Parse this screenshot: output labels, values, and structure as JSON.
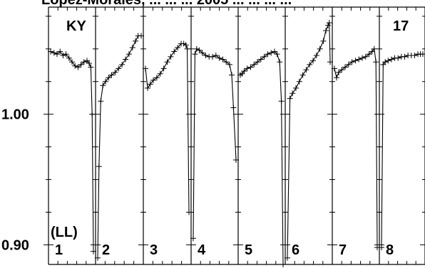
{
  "header_partial": "Lopez-Morales, ... ... ... 2005 ... ... ... ...",
  "chart_data": {
    "type": "line",
    "title": "",
    "xlabel": "",
    "ylabel": "",
    "ylim": [
      0.885,
      1.082
    ],
    "y_ticks": [
      0.9,
      1.0
    ],
    "y_tick_labels": [
      "0.90",
      "1.00"
    ],
    "star_label": "KY",
    "corner_label": "17",
    "sub_label": "(LL)",
    "panels": [
      {
        "label": "1",
        "x": [
          0.0,
          0.08,
          0.15,
          0.22,
          0.29,
          0.36,
          0.43,
          0.5,
          0.57,
          0.64,
          0.71,
          0.78,
          0.85,
          0.9,
          0.94,
          0.97,
          1.0
        ],
        "y": [
          1.048,
          1.047,
          1.046,
          1.048,
          1.045,
          1.046,
          1.043,
          1.04,
          1.037,
          1.036,
          1.038,
          1.04,
          1.041,
          1.039,
          1.036,
          1.0,
          0.895
        ]
      },
      {
        "label": "2",
        "x": [
          0.0,
          0.03,
          0.07,
          0.12,
          0.18,
          0.25,
          0.32,
          0.4,
          0.48,
          0.56,
          0.64,
          0.72,
          0.8,
          0.87,
          0.93,
          1.0
        ],
        "y": [
          0.89,
          0.96,
          1.01,
          1.022,
          1.025,
          1.028,
          1.03,
          1.032,
          1.035,
          1.038,
          1.042,
          1.046,
          1.051,
          1.056,
          1.06,
          1.06
        ]
      },
      {
        "label": "3",
        "x": [
          0.0,
          0.05,
          0.11,
          0.18,
          0.26,
          0.34,
          0.42,
          0.5,
          0.58,
          0.66,
          0.74,
          0.82,
          0.88,
          0.93,
          0.96,
          1.0
        ],
        "y": [
          1.035,
          1.02,
          1.023,
          1.026,
          1.028,
          1.031,
          1.035,
          1.04,
          1.044,
          1.048,
          1.051,
          1.054,
          1.054,
          1.053,
          1.05,
          0.925
        ]
      },
      {
        "label": "4",
        "x": [
          0.0,
          0.04,
          0.08,
          0.14,
          0.21,
          0.29,
          0.37,
          0.45,
          0.53,
          0.61,
          0.69,
          0.77,
          0.85,
          0.9,
          0.94,
          1.0
        ],
        "y": [
          0.905,
          1.046,
          1.05,
          1.049,
          1.047,
          1.045,
          1.044,
          1.044,
          1.045,
          1.043,
          1.042,
          1.04,
          1.038,
          1.03,
          1.005,
          0.965
        ]
      },
      {
        "label": "5",
        "x": [
          0.0,
          0.04,
          0.09,
          0.16,
          0.24,
          0.32,
          0.4,
          0.48,
          0.56,
          0.64,
          0.72,
          0.8,
          0.86,
          0.92,
          0.96,
          1.0
        ],
        "y": [
          1.03,
          1.031,
          1.033,
          1.035,
          1.036,
          1.038,
          1.04,
          1.042,
          1.044,
          1.046,
          1.047,
          1.048,
          1.046,
          1.04,
          1.01,
          0.885
        ]
      },
      {
        "label": "6",
        "x": [
          0.0,
          0.06,
          0.12,
          0.2,
          0.28,
          0.36,
          0.44,
          0.52,
          0.6,
          0.68,
          0.76,
          0.84,
          0.9,
          0.95,
          0.98,
          1.0
        ],
        "y": [
          0.89,
          1.012,
          1.016,
          1.02,
          1.025,
          1.03,
          1.034,
          1.038,
          1.041,
          1.045,
          1.05,
          1.056,
          1.064,
          1.068,
          1.07,
          1.04
        ]
      },
      {
        "label": "7",
        "x": [
          0.0,
          0.05,
          0.1,
          0.17,
          0.25,
          0.33,
          0.41,
          0.49,
          0.57,
          0.65,
          0.73,
          0.81,
          0.88,
          0.93,
          0.97,
          1.0
        ],
        "y": [
          1.035,
          1.028,
          1.032,
          1.034,
          1.036,
          1.038,
          1.04,
          1.041,
          1.042,
          1.043,
          1.044,
          1.046,
          1.048,
          1.05,
          1.04,
          0.898
        ]
      },
      {
        "label": "8",
        "x": [
          0.0,
          0.04,
          0.09,
          0.16,
          0.24,
          0.32,
          0.4,
          0.48,
          0.56,
          0.64,
          0.72,
          0.8,
          0.88,
          0.94,
          1.0
        ],
        "y": [
          0.898,
          1.038,
          1.04,
          1.041,
          1.042,
          1.043,
          1.043,
          1.044,
          1.044,
          1.045,
          1.045,
          1.045,
          1.046,
          1.046,
          1.046
        ]
      }
    ]
  }
}
